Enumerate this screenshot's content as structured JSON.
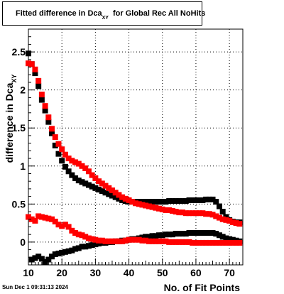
{
  "title": {
    "main": "Fitted difference in Dca",
    "sub": "XY",
    "rest": "for Global Rec All NoHits"
  },
  "timestamp": "Sun Dec  1 09:31:13 2024",
  "chart_data": {
    "type": "scatter",
    "title": "Fitted difference in Dca_XY for Global Rec All NoHits",
    "xlabel": "No. of Fit Points",
    "ylabel": "difference in Dca_XY",
    "xlim": [
      10,
      74
    ],
    "ylim": [
      -0.3,
      2.8
    ],
    "xticks": [
      10,
      20,
      30,
      40,
      50,
      60,
      70
    ],
    "yticks": [
      0,
      0.5,
      1,
      1.5,
      2,
      2.5
    ],
    "ytick_labels": [
      "0",
      "0.5",
      "1",
      "1.5",
      "2",
      "2.5"
    ],
    "grid": true,
    "colors": {
      "black": "#000000",
      "red": "#ff0000"
    },
    "series": [
      {
        "color": "black",
        "x": [
          10,
          11,
          12,
          13,
          14,
          15,
          16,
          17,
          18,
          19,
          20,
          21,
          22,
          23,
          24,
          25,
          26,
          27,
          28,
          29,
          30,
          31,
          32,
          33,
          34,
          35,
          36,
          37,
          38,
          39,
          40,
          41,
          42,
          43,
          44,
          45,
          46,
          47,
          48,
          49,
          50,
          51,
          52,
          53,
          54,
          55,
          56,
          57,
          58,
          59,
          60,
          61,
          62,
          63,
          64,
          65,
          66,
          67,
          68,
          69,
          70,
          71,
          72,
          73
        ],
        "y": [
          2.48,
          2.34,
          2.22,
          2.05,
          1.87,
          1.73,
          1.58,
          1.43,
          1.27,
          1.16,
          1.07,
          0.99,
          0.93,
          0.88,
          0.84,
          0.81,
          0.79,
          0.77,
          0.75,
          0.73,
          0.71,
          0.69,
          0.67,
          0.65,
          0.63,
          0.61,
          0.59,
          0.57,
          0.55,
          0.54,
          0.53,
          0.53,
          0.53,
          0.53,
          0.53,
          0.53,
          0.53,
          0.53,
          0.53,
          0.53,
          0.53,
          0.53,
          0.54,
          0.54,
          0.54,
          0.54,
          0.54,
          0.54,
          0.55,
          0.55,
          0.55,
          0.55,
          0.55,
          0.56,
          0.56,
          0.56,
          0.53,
          0.47,
          0.4,
          0.33,
          0.29,
          0.27,
          0.26,
          0.26
        ]
      },
      {
        "color": "black",
        "x": [
          11,
          12,
          13,
          14,
          15,
          16,
          17,
          18,
          19,
          20,
          21,
          22,
          23,
          24,
          25,
          26,
          27,
          28,
          29,
          30,
          31,
          32,
          33,
          34,
          35,
          36,
          37,
          38,
          39,
          40,
          41,
          42,
          43,
          44,
          45,
          46,
          47,
          48,
          49,
          50,
          51,
          52,
          53,
          54,
          55,
          56,
          57,
          58,
          59,
          60,
          61,
          62,
          63,
          64,
          65,
          66,
          67,
          68,
          69,
          70,
          71,
          72,
          73
        ],
        "y": [
          -0.23,
          -0.21,
          -0.19,
          -0.22,
          -0.26,
          -0.23,
          -0.19,
          -0.16,
          -0.15,
          -0.14,
          -0.13,
          -0.12,
          -0.11,
          -0.09,
          -0.08,
          -0.06,
          -0.06,
          -0.05,
          -0.04,
          -0.03,
          -0.02,
          -0.01,
          -0.01,
          0.0,
          0.0,
          0.01,
          0.01,
          0.02,
          0.02,
          0.03,
          0.04,
          0.04,
          0.05,
          0.06,
          0.07,
          0.07,
          0.08,
          0.08,
          0.09,
          0.09,
          0.1,
          0.1,
          0.1,
          0.11,
          0.11,
          0.11,
          0.11,
          0.12,
          0.12,
          0.12,
          0.12,
          0.12,
          0.12,
          0.12,
          0.12,
          0.11,
          0.09,
          0.07,
          0.05,
          0.04,
          0.03,
          0.02,
          0.01
        ]
      },
      {
        "color": "red",
        "x": [
          10,
          11,
          12,
          13,
          14,
          15,
          16,
          17,
          18,
          19,
          20,
          21,
          22,
          23,
          24,
          25,
          26,
          27,
          28,
          29,
          30,
          31,
          32,
          33,
          34,
          35,
          36,
          37,
          38,
          39,
          40,
          41,
          42,
          43,
          44,
          45,
          46,
          47,
          48,
          49,
          50,
          51,
          52,
          53,
          54,
          55,
          56,
          57,
          58,
          59,
          60,
          61,
          62,
          63,
          64,
          65,
          66,
          67,
          68,
          69,
          70,
          71,
          72,
          73
        ],
        "y": [
          2.35,
          2.34,
          2.27,
          2.12,
          1.94,
          1.79,
          1.64,
          1.49,
          1.38,
          1.29,
          1.22,
          1.15,
          1.1,
          1.07,
          1.05,
          1.03,
          1.0,
          0.97,
          0.93,
          0.88,
          0.84,
          0.8,
          0.77,
          0.74,
          0.71,
          0.68,
          0.65,
          0.62,
          0.59,
          0.57,
          0.55,
          0.53,
          0.51,
          0.5,
          0.49,
          0.48,
          0.47,
          0.46,
          0.45,
          0.44,
          0.43,
          0.42,
          0.42,
          0.41,
          0.4,
          0.39,
          0.39,
          0.38,
          0.38,
          0.38,
          0.38,
          0.38,
          0.38,
          0.37,
          0.37,
          0.36,
          0.34,
          0.32,
          0.3,
          0.29,
          0.28,
          0.26,
          0.25,
          0.24
        ]
      },
      {
        "color": "red",
        "x": [
          10,
          11,
          12,
          13,
          14,
          15,
          16,
          17,
          18,
          19,
          20,
          21,
          22,
          23,
          24,
          25,
          26,
          27,
          28,
          29,
          30,
          31,
          32,
          33,
          34,
          35,
          36,
          37,
          38,
          39,
          40,
          41,
          42,
          43,
          44,
          45,
          46,
          47,
          48,
          49,
          50,
          51,
          52,
          53,
          54,
          55,
          56,
          57,
          58,
          59,
          60,
          61,
          62,
          63,
          64,
          65,
          66,
          67,
          68,
          69,
          70,
          71,
          72,
          73
        ],
        "y": [
          0.33,
          0.3,
          0.28,
          0.34,
          0.33,
          0.32,
          0.31,
          0.3,
          0.27,
          0.23,
          0.21,
          0.23,
          0.2,
          0.15,
          0.12,
          0.1,
          0.09,
          0.07,
          0.05,
          0.04,
          0.03,
          0.02,
          0.02,
          0.01,
          0.01,
          0.01,
          0.01,
          0.01,
          0.01,
          0.02,
          0.03,
          0.03,
          0.03,
          0.03,
          0.02,
          0.02,
          0.01,
          0.01,
          0.01,
          0.01,
          0.01,
          0.01,
          0.0,
          0.0,
          0.0,
          0.0,
          0.0,
          0.0,
          0.0,
          -0.01,
          -0.01,
          -0.01,
          -0.01,
          -0.01,
          -0.01,
          -0.01,
          -0.01,
          -0.01,
          -0.01,
          -0.01,
          -0.01,
          -0.01,
          -0.01,
          -0.01
        ]
      }
    ]
  }
}
